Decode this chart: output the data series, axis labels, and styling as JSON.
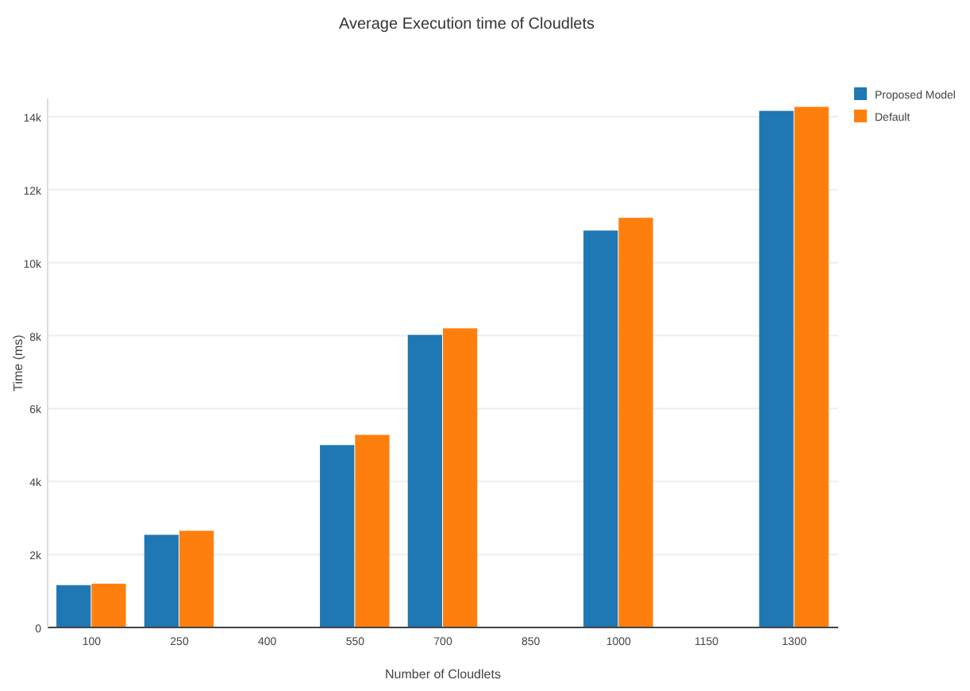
{
  "chart_data": {
    "type": "bar",
    "title": "Average Execution time of Cloudlets",
    "xlabel": "Number of Cloudlets",
    "ylabel": "Time (ms)",
    "x": [
      100,
      250,
      550,
      700,
      1000,
      1300
    ],
    "series": [
      {
        "name": "Proposed Model",
        "color": "#1f77b4",
        "values": [
          1160,
          2540,
          5000,
          8020,
          10880,
          14160
        ]
      },
      {
        "name": "Default",
        "color": "#ff7f0e",
        "values": [
          1200,
          2650,
          5280,
          8200,
          11230,
          14270
        ]
      }
    ],
    "xlim": [
      25,
      1375
    ],
    "xticks": [
      100,
      250,
      400,
      550,
      700,
      850,
      1000,
      1150,
      1300
    ],
    "ylim": [
      0,
      14500
    ],
    "yticks": [
      0,
      {
        "value": 2000,
        "label": "2k"
      },
      {
        "value": 4000,
        "label": "4k"
      },
      {
        "value": 6000,
        "label": "6k"
      },
      {
        "value": 8000,
        "label": "8k"
      },
      {
        "value": 10000,
        "label": "10k"
      },
      {
        "value": 12000,
        "label": "12k"
      },
      {
        "value": 14000,
        "label": "14k"
      }
    ],
    "grid": "y",
    "legend": "top right"
  }
}
